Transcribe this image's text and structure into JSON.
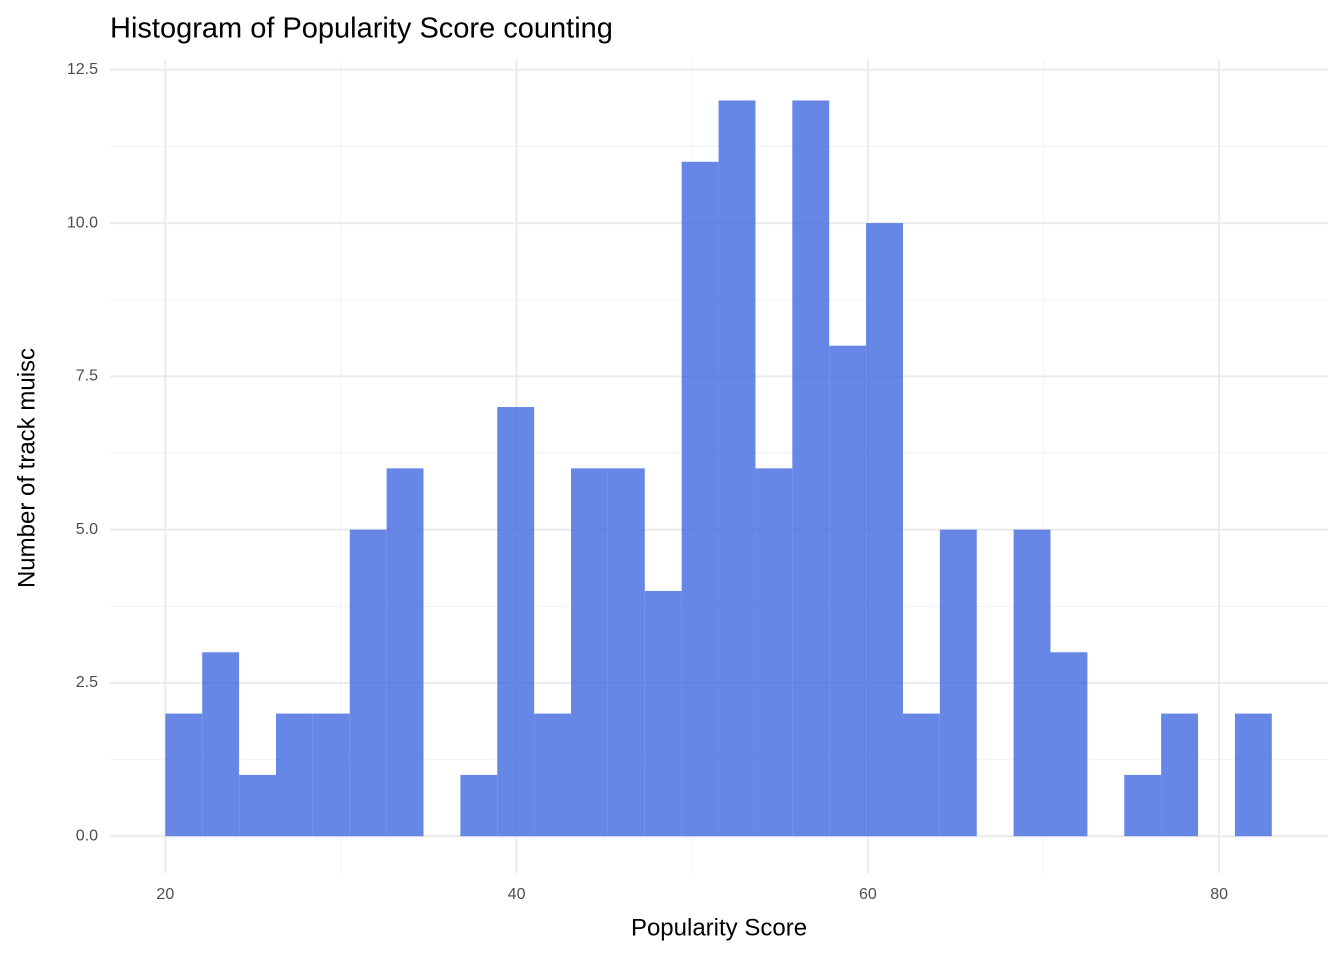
{
  "chart_data": {
    "type": "histogram",
    "title": "Histogram of Popularity Score counting",
    "x_label": "Popularity Score",
    "y_label": "Number of track muisc",
    "bins": [
      20,
      22.1,
      24.2,
      26.3,
      28.4,
      30.5,
      32.6,
      34.7,
      36.8,
      38.9,
      41,
      43.1,
      45.2,
      47.3,
      49.4,
      51.5,
      53.6,
      55.7,
      57.8,
      59.9,
      62,
      64.1,
      66.2,
      68.3,
      70.4,
      72.5,
      74.6,
      76.7,
      78.8,
      80.9,
      83
    ],
    "counts": [
      2,
      3,
      1,
      2,
      2,
      5,
      6,
      0,
      1,
      7,
      2,
      6,
      6,
      4,
      11,
      12,
      6,
      12,
      8,
      10,
      2,
      5,
      0,
      5,
      3,
      0,
      1,
      2,
      0,
      2
    ],
    "color": "#4169e1",
    "xlim": [
      16.85,
      86.2
    ],
    "ylim": [
      -0.6,
      12.66
    ],
    "xticks": [
      20,
      40,
      60,
      80
    ],
    "yticks": [
      {
        "value": 0,
        "label": "0.0"
      },
      2.5,
      {
        "value": 5,
        "label": "5.0"
      },
      7.5,
      {
        "value": 10,
        "label": "10.0"
      },
      12.5
    ],
    "grid": true
  }
}
